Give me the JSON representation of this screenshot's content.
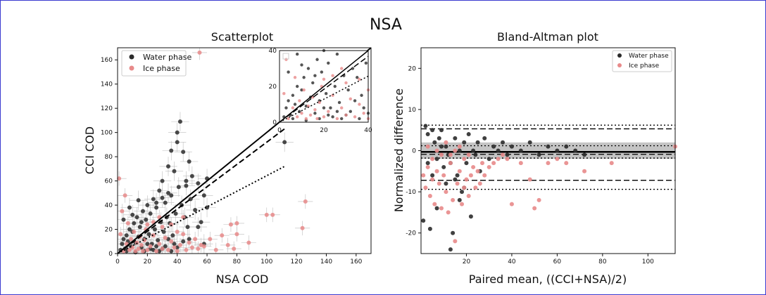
{
  "figure": {
    "suptitle": "NSA"
  },
  "colors": {
    "water": "#2b2b2b",
    "ice": "#e88a8a",
    "errorbar": "#bdbdbd",
    "band": "#b5b5b5"
  },
  "chart_data": [
    {
      "type": "scatter",
      "title": "Scatterplot",
      "xlabel": "NSA COD",
      "ylabel": "CCI COD",
      "xlim": [
        0,
        170
      ],
      "ylim": [
        0,
        170
      ],
      "xticks": [
        0,
        20,
        40,
        60,
        80,
        100,
        120,
        140,
        160
      ],
      "yticks": [
        0,
        20,
        40,
        60,
        80,
        100,
        120,
        140,
        160
      ],
      "legend": {
        "placement": "top-left",
        "entries": [
          "Water phase",
          "Ice phase"
        ]
      },
      "lines": [
        {
          "style": "solid",
          "x": [
            0,
            170
          ],
          "y": [
            0,
            170
          ]
        },
        {
          "style": "dashed",
          "x": [
            0,
            112
          ],
          "y": [
            0,
            103
          ]
        },
        {
          "style": "dotted",
          "x": [
            0,
            112
          ],
          "y": [
            0,
            72
          ]
        }
      ],
      "series": [
        {
          "name": "Water phase",
          "points": [
            [
              2,
              3
            ],
            [
              3,
              8
            ],
            [
              4,
              12
            ],
            [
              5,
              4
            ],
            [
              6,
              15
            ],
            [
              7,
              10
            ],
            [
              8,
              20
            ],
            [
              9,
              6
            ],
            [
              10,
              18
            ],
            [
              11,
              25
            ],
            [
              12,
              9
            ],
            [
              13,
              30
            ],
            [
              14,
              14
            ],
            [
              15,
              22
            ],
            [
              16,
              5
            ],
            [
              17,
              35
            ],
            [
              18,
              12
            ],
            [
              19,
              28
            ],
            [
              20,
              40
            ],
            [
              21,
              16
            ],
            [
              22,
              33
            ],
            [
              23,
              8
            ],
            [
              24,
              45
            ],
            [
              25,
              20
            ],
            [
              26,
              38
            ],
            [
              27,
              11
            ],
            [
              28,
              52
            ],
            [
              29,
              26
            ],
            [
              30,
              60
            ],
            [
              31,
              18
            ],
            [
              32,
              42
            ],
            [
              33,
              30
            ],
            [
              34,
              72
            ],
            [
              35,
              25
            ],
            [
              36,
              48
            ],
            [
              37,
              15
            ],
            [
              38,
              68
            ],
            [
              39,
              33
            ],
            [
              40,
              100
            ],
            [
              41,
              55
            ],
            [
              42,
              109
            ],
            [
              43,
              40
            ],
            [
              44,
              84
            ],
            [
              45,
              30
            ],
            [
              46,
              60
            ],
            [
              47,
              22
            ],
            [
              48,
              76
            ],
            [
              49,
              45
            ],
            [
              50,
              64
            ],
            [
              52,
              36
            ],
            [
              54,
              58
            ],
            [
              56,
              26
            ],
            [
              58,
              48
            ],
            [
              60,
              38
            ],
            [
              4,
              28
            ],
            [
              6,
              2
            ],
            [
              8,
              38
            ],
            [
              10,
              32
            ],
            [
              12,
              1
            ],
            [
              14,
              44
            ],
            [
              16,
              26
            ],
            [
              18,
              2
            ],
            [
              20,
              8
            ],
            [
              22,
              4
            ],
            [
              24,
              3
            ],
            [
              26,
              6
            ],
            [
              28,
              2
            ],
            [
              30,
              4
            ],
            [
              32,
              6
            ],
            [
              34,
              12
            ],
            [
              36,
              2
            ],
            [
              38,
              8
            ],
            [
              40,
              5
            ],
            [
              44,
              10
            ],
            [
              48,
              12
            ],
            [
              54,
              22
            ],
            [
              58,
              8
            ],
            [
              60,
              62
            ],
            [
              40,
              92
            ],
            [
              36,
              85
            ],
            [
              34,
              50
            ],
            [
              46,
              56
            ],
            [
              30,
              46
            ],
            [
              26,
              42
            ],
            [
              112,
              92
            ]
          ],
          "xerr": 6,
          "yerr": 8
        },
        {
          "name": "Ice phase",
          "points": [
            [
              1,
              62
            ],
            [
              2,
              16
            ],
            [
              3,
              35
            ],
            [
              4,
              2
            ],
            [
              5,
              48
            ],
            [
              6,
              8
            ],
            [
              7,
              25
            ],
            [
              8,
              3
            ],
            [
              9,
              12
            ],
            [
              10,
              5
            ],
            [
              11,
              18
            ],
            [
              12,
              2
            ],
            [
              13,
              9
            ],
            [
              14,
              4
            ],
            [
              15,
              14
            ],
            [
              16,
              7
            ],
            [
              17,
              2
            ],
            [
              18,
              11
            ],
            [
              19,
              20
            ],
            [
              20,
              3
            ],
            [
              22,
              6
            ],
            [
              24,
              15
            ],
            [
              26,
              2
            ],
            [
              28,
              8
            ],
            [
              30,
              4
            ],
            [
              32,
              13
            ],
            [
              34,
              3
            ],
            [
              36,
              10
            ],
            [
              38,
              5
            ],
            [
              40,
              2
            ],
            [
              42,
              7
            ],
            [
              44,
              16
            ],
            [
              46,
              3
            ],
            [
              48,
              9
            ],
            [
              50,
              5
            ],
            [
              52,
              12
            ],
            [
              54,
              4
            ],
            [
              56,
              7
            ],
            [
              58,
              6
            ],
            [
              55,
              166
            ],
            [
              62,
              12
            ],
            [
              66,
              3
            ],
            [
              70,
              15
            ],
            [
              74,
              7
            ],
            [
              76,
              24
            ],
            [
              78,
              4
            ],
            [
              80,
              16
            ],
            [
              80,
              25
            ],
            [
              88,
              9
            ],
            [
              100,
              32
            ],
            [
              104,
              32
            ],
            [
              124,
              21
            ],
            [
              126,
              43
            ],
            [
              36,
              24
            ],
            [
              40,
              18
            ],
            [
              44,
              30
            ],
            [
              30,
              22
            ],
            [
              24,
              26
            ],
            [
              28,
              30
            ],
            [
              20,
              24
            ]
          ],
          "xerr": 5,
          "yerr": 6
        }
      ],
      "inset": {
        "xlim": [
          0,
          40
        ],
        "ylim": [
          0,
          40
        ],
        "xticks": [
          0,
          20,
          40
        ],
        "yticks": [
          0,
          20,
          40
        ]
      }
    },
    {
      "type": "scatter",
      "title": "Bland-Altman plot",
      "xlabel": "Paired mean, ((CCI+NSA)/2)",
      "ylabel": "Normalized difference",
      "xlim": [
        0,
        112
      ],
      "ylim": [
        -25,
        25
      ],
      "xticks": [
        20,
        40,
        60,
        80,
        100
      ],
      "yticks": [
        -20,
        -10,
        0,
        10,
        20
      ],
      "legend": {
        "placement": "top-right",
        "entries": [
          "Water phase",
          "Ice phase"
        ]
      },
      "reference_lines": [
        {
          "style": "solid-thick",
          "y": -0.3
        },
        {
          "style": "dashed",
          "y": 5.3
        },
        {
          "style": "dashed",
          "y": -7.2
        },
        {
          "style": "dashed",
          "y": -0.9
        },
        {
          "style": "dotted",
          "y": 6.2
        },
        {
          "style": "dotted",
          "y": -9.4
        },
        {
          "style": "dotted",
          "y": -1.8
        },
        {
          "style": "dotted",
          "y": 1.2
        }
      ],
      "band": {
        "y0": -2.0,
        "y1": 2.0
      },
      "series": [
        {
          "name": "Water phase",
          "points": [
            [
              1,
              -17
            ],
            [
              2,
              6
            ],
            [
              3,
              4
            ],
            [
              4,
              -19
            ],
            [
              5,
              5
            ],
            [
              6,
              2
            ],
            [
              7,
              -14
            ],
            [
              8,
              3
            ],
            [
              9,
              1
            ],
            [
              10,
              -4
            ],
            [
              11,
              -8
            ],
            [
              12,
              -1
            ],
            [
              13,
              -24
            ],
            [
              14,
              -20
            ],
            [
              15,
              3
            ],
            [
              16,
              -6
            ],
            [
              17,
              0
            ],
            [
              18,
              -10
            ],
            [
              19,
              2
            ],
            [
              20,
              -3
            ],
            [
              22,
              -16
            ],
            [
              24,
              -1
            ],
            [
              26,
              -5
            ],
            [
              28,
              3
            ],
            [
              30,
              -2
            ],
            [
              32,
              1
            ],
            [
              34,
              0
            ],
            [
              36,
              2
            ],
            [
              38,
              -1
            ],
            [
              40,
              1
            ],
            [
              44,
              0
            ],
            [
              48,
              2
            ],
            [
              52,
              -1
            ],
            [
              56,
              1
            ],
            [
              60,
              0
            ],
            [
              64,
              1
            ],
            [
              68,
              0
            ],
            [
              72,
              -1
            ],
            [
              3,
              -3
            ],
            [
              5,
              -6
            ],
            [
              7,
              -2
            ],
            [
              9,
              5
            ],
            [
              11,
              1
            ],
            [
              13,
              -3
            ],
            [
              15,
              -7
            ],
            [
              17,
              -12
            ],
            [
              19,
              -9
            ],
            [
              21,
              4
            ],
            [
              23,
              0
            ],
            [
              25,
              2
            ]
          ],
          "xerr": 0,
          "yerr": 0
        },
        {
          "name": "Ice phase",
          "points": [
            [
              1,
              -6
            ],
            [
              2,
              -9
            ],
            [
              3,
              -4
            ],
            [
              4,
              -11
            ],
            [
              5,
              -7
            ],
            [
              6,
              -13
            ],
            [
              7,
              -5
            ],
            [
              8,
              -8
            ],
            [
              9,
              -14
            ],
            [
              10,
              -6
            ],
            [
              11,
              -10
            ],
            [
              12,
              -15
            ],
            [
              13,
              -3
            ],
            [
              14,
              -12
            ],
            [
              15,
              -22
            ],
            [
              16,
              -8
            ],
            [
              17,
              -5
            ],
            [
              18,
              -13
            ],
            [
              19,
              -9
            ],
            [
              20,
              -7
            ],
            [
              21,
              -11
            ],
            [
              22,
              -6
            ],
            [
              23,
              -4
            ],
            [
              24,
              -9
            ],
            [
              25,
              -5
            ],
            [
              26,
              -8
            ],
            [
              27,
              -3
            ],
            [
              28,
              -6
            ],
            [
              30,
              -4
            ],
            [
              32,
              -3
            ],
            [
              34,
              -2
            ],
            [
              36,
              -1
            ],
            [
              38,
              -2
            ],
            [
              40,
              -13
            ],
            [
              44,
              -3
            ],
            [
              48,
              -7
            ],
            [
              50,
              -14
            ],
            [
              52,
              -12
            ],
            [
              56,
              -3
            ],
            [
              60,
              -2
            ],
            [
              64,
              -3
            ],
            [
              72,
              -5
            ],
            [
              84,
              -3
            ],
            [
              112,
              1
            ],
            [
              3,
              1
            ],
            [
              5,
              -2
            ],
            [
              7,
              0
            ],
            [
              9,
              -1
            ],
            [
              11,
              2
            ],
            [
              13,
              -1
            ],
            [
              15,
              0
            ],
            [
              17,
              1
            ],
            [
              19,
              -2
            ],
            [
              21,
              -1
            ]
          ],
          "xerr": 0,
          "yerr": 0
        }
      ]
    }
  ]
}
